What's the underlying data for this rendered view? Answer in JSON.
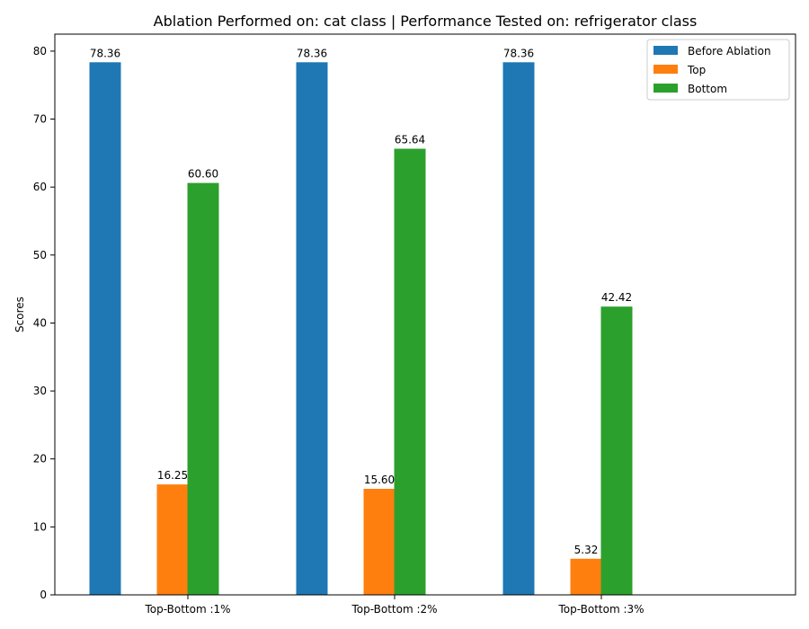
{
  "chart_data": {
    "type": "bar",
    "title": "Ablation Performed on: cat class | Performance Tested on: refrigerator class",
    "xlabel": "",
    "ylabel": "Scores",
    "categories": [
      "Top-Bottom :1%",
      "Top-Bottom :2%",
      "Top-Bottom :3%"
    ],
    "series": [
      {
        "name": "Before Ablation",
        "color": "#1f77b4",
        "values": [
          78.36,
          78.36,
          78.36
        ],
        "labels": [
          "78.36",
          "78.36",
          "78.36"
        ]
      },
      {
        "name": "Top",
        "color": "#ff7f0e",
        "values": [
          16.25,
          15.6,
          5.32
        ],
        "labels": [
          "16.25",
          "15.60",
          "5.32"
        ]
      },
      {
        "name": "Bottom",
        "color": "#2ca02c",
        "values": [
          60.6,
          65.64,
          42.42
        ],
        "labels": [
          "60.60",
          "65.64",
          "42.42"
        ]
      }
    ],
    "ylim": [
      0,
      82.5
    ],
    "yticks": [
      0,
      10,
      20,
      30,
      40,
      50,
      60,
      70,
      80
    ],
    "grid": false,
    "legend_position": "top-right"
  }
}
